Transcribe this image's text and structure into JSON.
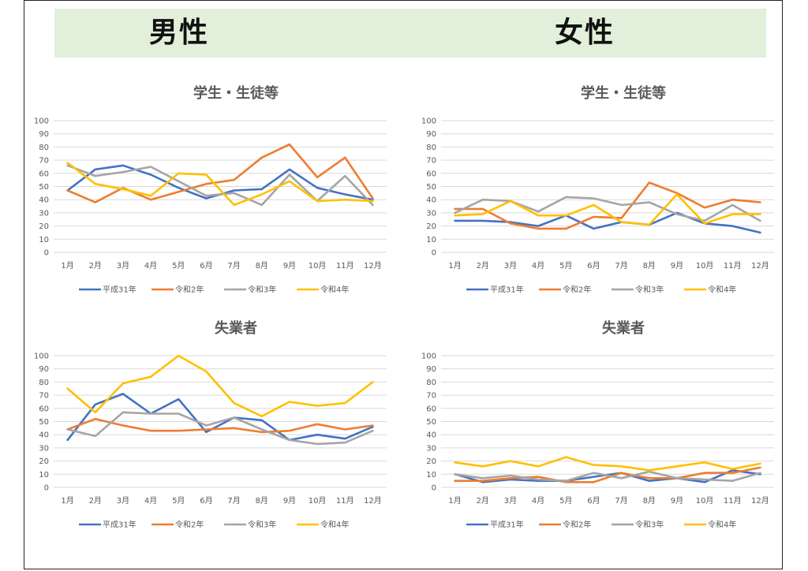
{
  "header": {
    "left_label": "男性",
    "right_label": "女性"
  },
  "series_names": [
    "平成31年",
    "令和2年",
    "令和3年",
    "令和4年"
  ],
  "series_colors": [
    "#4472c4",
    "#ed7d31",
    "#a5a5a5",
    "#ffc000"
  ],
  "chart_data": [
    {
      "type": "line",
      "title": "学生・生徒等",
      "categories": [
        "1月",
        "2月",
        "3月",
        "4月",
        "5月",
        "6月",
        "7月",
        "8月",
        "9月",
        "10月",
        "11月",
        "12月"
      ],
      "ylim": [
        0,
        100
      ],
      "yticks": [
        "0",
        "10",
        "20",
        "30",
        "40",
        "50",
        "60",
        "70",
        "80",
        "90",
        "100"
      ],
      "grid": true,
      "legend": "bottom",
      "series": [
        {
          "name": "平成31年",
          "values": [
            47,
            63,
            66,
            59,
            49,
            41,
            47,
            48,
            63,
            49,
            44,
            40
          ]
        },
        {
          "name": "令和2年",
          "values": [
            47,
            38,
            49,
            40,
            46,
            52,
            55,
            72,
            82,
            57,
            72,
            41
          ]
        },
        {
          "name": "令和3年",
          "values": [
            66,
            58,
            61,
            65,
            54,
            43,
            45,
            36,
            59,
            39,
            58,
            36
          ]
        },
        {
          "name": "令和4年",
          "values": [
            68,
            52,
            48,
            43,
            60,
            59,
            36,
            44,
            54,
            39,
            40,
            39
          ]
        }
      ]
    },
    {
      "type": "line",
      "title": "学生・生徒等",
      "categories": [
        "1月",
        "2月",
        "3月",
        "4月",
        "5月",
        "6月",
        "7月",
        "8月",
        "9月",
        "10月",
        "11月",
        "12月"
      ],
      "ylim": [
        0,
        100
      ],
      "yticks": [
        "0",
        "10",
        "20",
        "30",
        "40",
        "50",
        "60",
        "70",
        "80",
        "90",
        "100"
      ],
      "grid": true,
      "legend": "bottom",
      "series": [
        {
          "name": "平成31年",
          "values": [
            24,
            24,
            23,
            20,
            28,
            18,
            23,
            21,
            30,
            22,
            20,
            15
          ]
        },
        {
          "name": "令和2年",
          "values": [
            33,
            33,
            22,
            18,
            18,
            27,
            26,
            53,
            45,
            34,
            40,
            38
          ]
        },
        {
          "name": "令和3年",
          "values": [
            30,
            40,
            39,
            31,
            42,
            41,
            36,
            38,
            29,
            24,
            36,
            24
          ]
        },
        {
          "name": "令和4年",
          "values": [
            28,
            29,
            39,
            28,
            28,
            36,
            23,
            21,
            44,
            22,
            29,
            29
          ]
        }
      ]
    },
    {
      "type": "line",
      "title": "失業者",
      "categories": [
        "1月",
        "2月",
        "3月",
        "4月",
        "5月",
        "6月",
        "7月",
        "8月",
        "9月",
        "10月",
        "11月",
        "12月"
      ],
      "ylim": [
        0,
        100
      ],
      "yticks": [
        "0",
        "10",
        "20",
        "30",
        "40",
        "50",
        "60",
        "70",
        "80",
        "90",
        "100"
      ],
      "grid": true,
      "legend": "bottom",
      "series": [
        {
          "name": "平成31年",
          "values": [
            36,
            63,
            71,
            56,
            67,
            42,
            53,
            51,
            36,
            40,
            37,
            46
          ]
        },
        {
          "name": "令和2年",
          "values": [
            44,
            52,
            47,
            43,
            43,
            44,
            45,
            42,
            43,
            48,
            44,
            47
          ]
        },
        {
          "name": "令和3年",
          "values": [
            44,
            39,
            57,
            56,
            56,
            47,
            53,
            44,
            36,
            33,
            34,
            43
          ]
        },
        {
          "name": "令和4年",
          "values": [
            75,
            57,
            79,
            84,
            100,
            88,
            64,
            54,
            65,
            62,
            64,
            80
          ]
        }
      ]
    },
    {
      "type": "line",
      "title": "失業者",
      "categories": [
        "1月",
        "2月",
        "3月",
        "4月",
        "5月",
        "6月",
        "7月",
        "8月",
        "9月",
        "10月",
        "11月",
        "12月"
      ],
      "ylim": [
        0,
        100
      ],
      "yticks": [
        "0",
        "10",
        "20",
        "30",
        "40",
        "50",
        "60",
        "70",
        "80",
        "90",
        "100"
      ],
      "grid": true,
      "legend": "bottom",
      "series": [
        {
          "name": "平成31年",
          "values": [
            10,
            4,
            6,
            5,
            5,
            8,
            11,
            5,
            7,
            4,
            13,
            10
          ]
        },
        {
          "name": "令和2年",
          "values": [
            5,
            5,
            7,
            8,
            4,
            4,
            11,
            7,
            7,
            11,
            11,
            15
          ]
        },
        {
          "name": "令和3年",
          "values": [
            10,
            7,
            9,
            6,
            5,
            11,
            7,
            12,
            7,
            6,
            5,
            11
          ]
        },
        {
          "name": "令和4年",
          "values": [
            19,
            16,
            20,
            16,
            23,
            17,
            16,
            13,
            16,
            19,
            14,
            18
          ]
        }
      ]
    }
  ]
}
